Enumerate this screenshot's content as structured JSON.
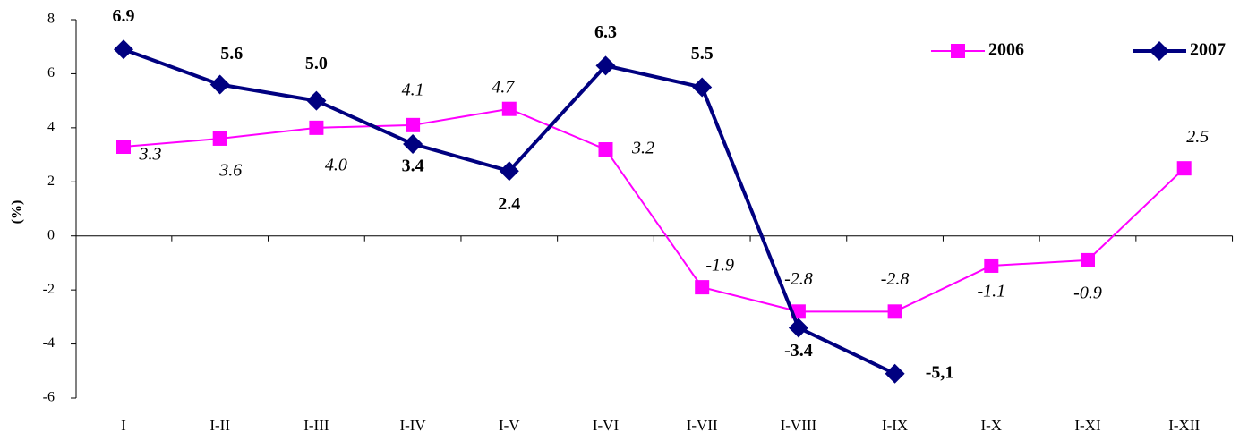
{
  "chart_data": {
    "type": "line",
    "y_label": "(%)",
    "categories": [
      "I",
      "I-II",
      "I-III",
      "I-IV",
      "I-V",
      "I-VI",
      "I-VII",
      "I-VIII",
      "I-IX",
      "I-X",
      "I-XI",
      "I-XII"
    ],
    "series": [
      {
        "name": "2006",
        "color": "#ff00ff",
        "marker": "square",
        "values": [
          3.3,
          3.6,
          4.0,
          4.1,
          4.7,
          3.2,
          -1.9,
          -2.8,
          -2.8,
          -1.1,
          -0.9,
          2.5
        ],
        "value_labels": [
          "3.3",
          "3.6",
          "4.0",
          "4.1",
          "4.7",
          "3.2",
          "-1.9",
          "-2.8",
          "-2.8",
          "-1.1",
          "-0.9",
          "2.5"
        ]
      },
      {
        "name": "2007",
        "color": "#000080",
        "marker": "diamond",
        "values": [
          6.9,
          5.6,
          5.0,
          3.4,
          2.4,
          6.3,
          5.5,
          -3.4,
          -5.1,
          null,
          null,
          null
        ],
        "value_labels": [
          "6.9",
          "5.6",
          "5.0",
          "3.4",
          "2.4",
          "6.3",
          "5.5",
          "-3.4",
          "-5,1",
          null,
          null,
          null
        ]
      }
    ],
    "ylim": [
      -6,
      8
    ],
    "yticks": [
      -6,
      -4,
      -2,
      0,
      2,
      4,
      6,
      8
    ],
    "legend": "upper right"
  }
}
